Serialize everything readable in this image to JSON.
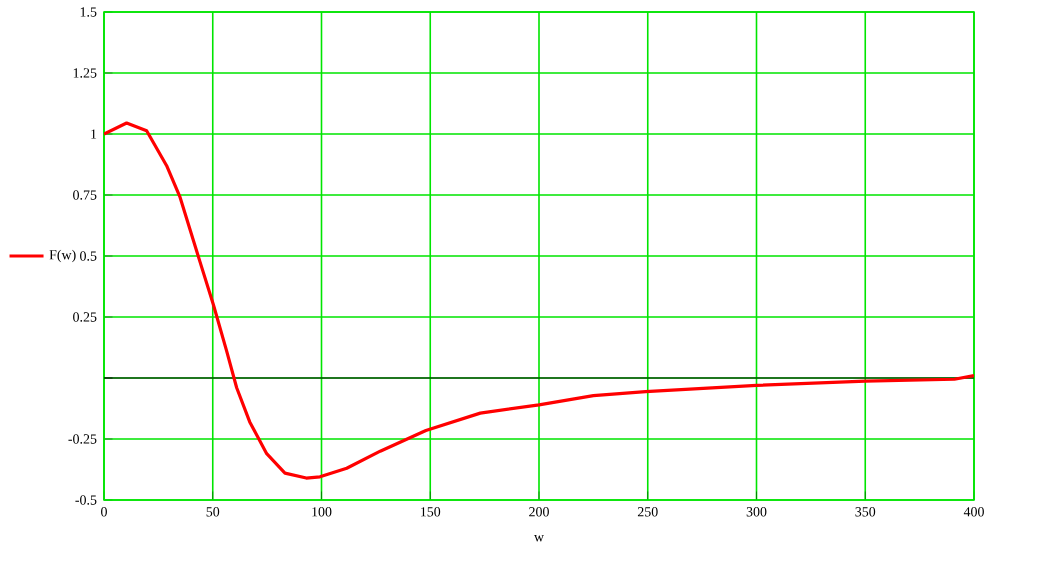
{
  "chart_data": {
    "type": "line",
    "xlabel": "w",
    "legend": "left",
    "grid": true,
    "xlim": [
      0,
      400
    ],
    "ylim": [
      -0.5,
      1.5
    ],
    "xticks": [
      0,
      50,
      100,
      150,
      200,
      250,
      300,
      350,
      400
    ],
    "yticks": [
      -0.5,
      -0.25,
      {
        "value": 0,
        "label": null
      },
      0.25,
      0.5,
      0.75,
      1,
      1.25,
      1.5
    ],
    "series": [
      {
        "name": "F(w)",
        "color": "#ff0000",
        "x": [
          0,
          10.4,
          19.6,
          28.8,
          35,
          44,
          50.3,
          56.4,
          61,
          67,
          74.8,
          83.2,
          93,
          99.3,
          111.6,
          127,
          148,
          173,
          200,
          225,
          249,
          300,
          350,
          391,
          400
        ],
        "values": [
          1,
          1.045,
          1.013,
          0.87,
          0.74,
          0.48,
          0.3,
          0.11,
          -0.04,
          -0.18,
          -0.31,
          -0.39,
          -0.41,
          -0.405,
          -0.37,
          -0.3,
          -0.215,
          -0.144,
          -0.11,
          -0.072,
          -0.056,
          -0.03,
          -0.013,
          -0.005,
          0.01
        ]
      }
    ]
  }
}
